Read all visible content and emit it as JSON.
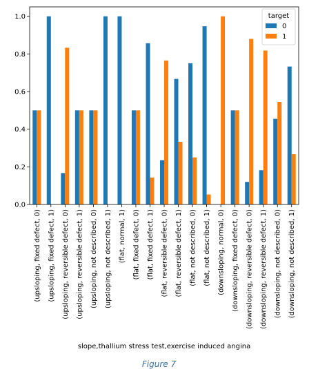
{
  "caption": "Figure 7",
  "chart_data": {
    "type": "bar",
    "xlabel": "slope,thallium stress test,exercise induced angina",
    "ylabel": "",
    "ylim": [
      0,
      1.05
    ],
    "yticks": [
      "0.0",
      "0.2",
      "0.4",
      "0.6",
      "0.8",
      "1.0"
    ],
    "legend": {
      "title": "target",
      "placement": "top-right"
    },
    "categories": [
      "(upsloping, fixed defect, 0)",
      "(upsloping, fixed defect, 1)",
      "(upsloping, reversible defect, 0)",
      "(upsloping, reversible defect, 1)",
      "(upsloping, not described, 0)",
      "(upsloping, not described, 1)",
      "(flat, normal, 1)",
      "(flat, fixed defect, 0)",
      "(flat, fixed defect, 1)",
      "(flat, reversible defect, 0)",
      "(flat, reversible defect, 1)",
      "(flat, not described, 0)",
      "(flat, not described, 1)",
      "(downsloping, normal, 0)",
      "(downsloping, fixed defect, 0)",
      "(downsloping, reversible defect, 0)",
      "(downsloping, reversible defect, 1)",
      "(downsloping, not described, 0)",
      "(downsloping, not described, 1)"
    ],
    "series": [
      {
        "name": "0",
        "color": "#1f77b4",
        "values": [
          0.5,
          1.0,
          0.167,
          0.5,
          0.5,
          1.0,
          1.0,
          0.5,
          0.857,
          0.235,
          0.667,
          0.75,
          0.947,
          0.0,
          0.5,
          0.12,
          0.182,
          0.455,
          0.733
        ]
      },
      {
        "name": "1",
        "color": "#ff7f0e",
        "values": [
          0.5,
          0.0,
          0.833,
          0.5,
          0.5,
          0.0,
          0.0,
          0.5,
          0.143,
          0.765,
          0.333,
          0.25,
          0.053,
          1.0,
          0.5,
          0.88,
          0.818,
          0.545,
          0.267
        ]
      }
    ]
  }
}
